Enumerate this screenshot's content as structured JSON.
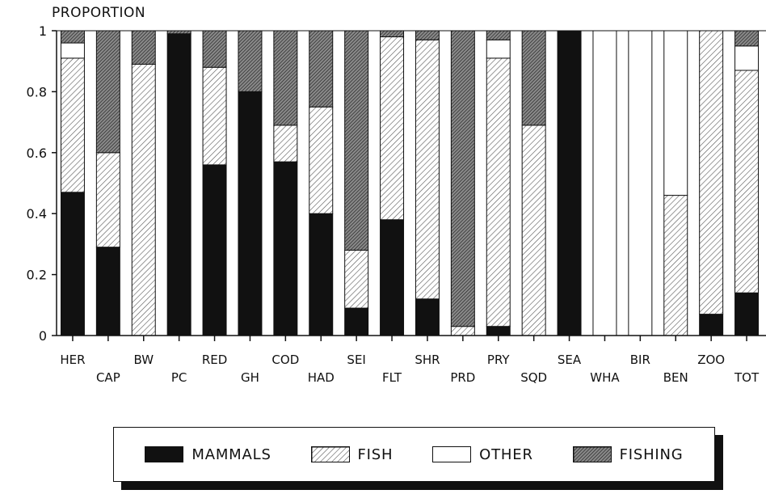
{
  "y_axis_caption": "PROPORTION",
  "legend": [
    {
      "key": "mammals",
      "label": "MAMMALS"
    },
    {
      "key": "fish",
      "label": "FISH"
    },
    {
      "key": "other",
      "label": "OTHER"
    },
    {
      "key": "fishing",
      "label": "FISHING"
    }
  ],
  "chart_data": {
    "type": "bar",
    "stacked": true,
    "ylabel": "PROPORTION",
    "ylim": [
      0,
      1
    ],
    "yticks": [
      "0",
      "0.2",
      "0.4",
      "0.6",
      "0.8",
      "1"
    ],
    "legend_position": "bottom",
    "categories": [
      "HER",
      "CAP",
      "BW",
      "PC",
      "RED",
      "GH",
      "COD",
      "HAD",
      "SEI",
      "FLT",
      "SHR",
      "PRD",
      "PRY",
      "SQD",
      "SEA",
      "WHA",
      "BIR",
      "BEN",
      "ZOO",
      "TOT"
    ],
    "series": [
      {
        "name": "MAMMALS",
        "fill": "solid-black",
        "values": [
          0.47,
          0.29,
          0.0,
          0.99,
          0.56,
          0.8,
          0.57,
          0.4,
          0.09,
          0.38,
          0.12,
          0.0,
          0.03,
          0.0,
          1.0,
          0.0,
          0.0,
          0.0,
          0.07,
          0.14
        ]
      },
      {
        "name": "FISH",
        "fill": "light-hatch",
        "values": [
          0.44,
          0.31,
          0.89,
          0.0,
          0.32,
          0.0,
          0.12,
          0.35,
          0.19,
          0.6,
          0.85,
          0.03,
          0.88,
          0.69,
          0.0,
          0.0,
          0.0,
          0.46,
          0.93,
          0.73
        ]
      },
      {
        "name": "OTHER",
        "fill": "white",
        "values": [
          0.05,
          0.0,
          0.0,
          0.0,
          0.0,
          0.0,
          0.0,
          0.0,
          0.0,
          0.0,
          0.0,
          0.0,
          0.06,
          0.0,
          0.0,
          1.0,
          1.0,
          0.54,
          0.0,
          0.08
        ]
      },
      {
        "name": "FISHING",
        "fill": "dark-hatch",
        "values": [
          0.04,
          0.4,
          0.11,
          0.01,
          0.12,
          0.2,
          0.31,
          0.25,
          0.72,
          0.02,
          0.03,
          0.97,
          0.03,
          0.31,
          0.0,
          0.0,
          0.0,
          0.0,
          0.0,
          0.05
        ]
      }
    ]
  }
}
